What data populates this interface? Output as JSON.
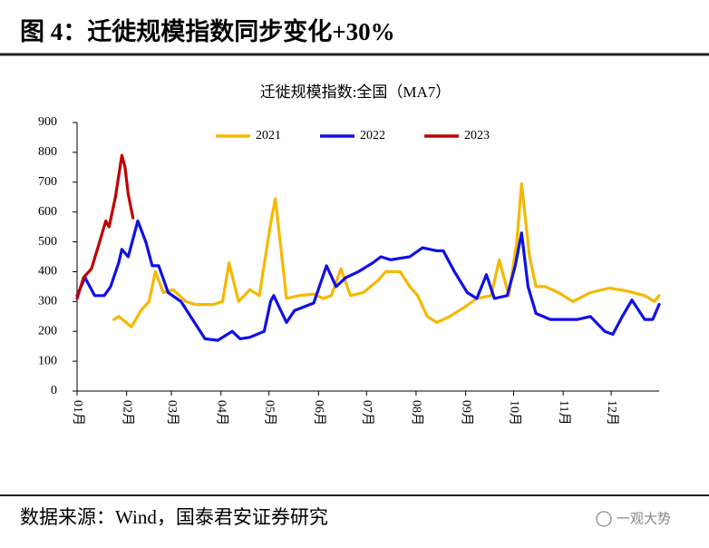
{
  "header": {
    "title": "图 4：迁徙规模指数同步变化+30%"
  },
  "chart_data": {
    "type": "line",
    "title": "迁徙规模指数:全国（MA7）",
    "xlim": [
      1,
      365
    ],
    "xticks": [
      {
        "value": 1,
        "label": "01月"
      },
      {
        "value": 32,
        "label": "02月"
      },
      {
        "value": 60,
        "label": "03月"
      },
      {
        "value": 91,
        "label": "04月"
      },
      {
        "value": 121,
        "label": "05月"
      },
      {
        "value": 152,
        "label": "06月"
      },
      {
        "value": 182,
        "label": "07月"
      },
      {
        "value": 213,
        "label": "08月"
      },
      {
        "value": 244,
        "label": "09月"
      },
      {
        "value": 274,
        "label": "10月"
      },
      {
        "value": 305,
        "label": "11月"
      },
      {
        "value": 335,
        "label": "12月"
      }
    ],
    "ylim": [
      0,
      900
    ],
    "yticks": [
      0,
      100,
      200,
      300,
      400,
      500,
      600,
      700,
      800,
      900
    ],
    "legend": "top",
    "series": [
      {
        "name": "2021",
        "color": "#f5b800",
        "x": [
          24,
          27,
          35,
          41,
          46,
          50,
          55,
          61,
          69,
          75,
          86,
          92,
          96,
          102,
          109,
          115,
          122,
          125,
          132,
          140,
          149,
          155,
          160,
          166,
          172,
          180,
          189,
          194,
          203,
          209,
          214,
          220,
          226,
          234,
          243,
          251,
          260,
          265,
          271,
          276,
          279,
          284,
          288,
          294,
          302,
          311,
          322,
          334,
          345,
          356,
          362,
          365
        ],
        "values": [
          240,
          250,
          215,
          270,
          300,
          400,
          330,
          340,
          300,
          290,
          290,
          300,
          430,
          300,
          340,
          320,
          560,
          645,
          310,
          320,
          325,
          310,
          320,
          410,
          320,
          330,
          370,
          400,
          400,
          350,
          320,
          250,
          230,
          250,
          280,
          310,
          320,
          440,
          320,
          500,
          695,
          450,
          350,
          350,
          330,
          300,
          330,
          345,
          335,
          320,
          300,
          320
        ]
      },
      {
        "name": "2022",
        "color": "#1010e8",
        "x": [
          1,
          6,
          12,
          18,
          22,
          27,
          29,
          33,
          39,
          44,
          48,
          52,
          58,
          66,
          72,
          81,
          89,
          98,
          103,
          109,
          118,
          122,
          124,
          132,
          137,
          149,
          157,
          163,
          169,
          177,
          186,
          191,
          197,
          209,
          217,
          226,
          230,
          237,
          245,
          251,
          257,
          262,
          270,
          275,
          279,
          283,
          288,
          297,
          305,
          314,
          322,
          331,
          336,
          342,
          348,
          356,
          361,
          365
        ],
        "values": [
          320,
          380,
          320,
          320,
          350,
          430,
          475,
          450,
          570,
          500,
          420,
          420,
          330,
          300,
          250,
          175,
          170,
          200,
          175,
          180,
          200,
          300,
          320,
          230,
          270,
          295,
          420,
          350,
          380,
          400,
          430,
          450,
          440,
          450,
          480,
          470,
          470,
          400,
          330,
          310,
          390,
          310,
          320,
          420,
          530,
          350,
          260,
          240,
          240,
          240,
          250,
          200,
          190,
          250,
          305,
          240,
          240,
          290
        ]
      },
      {
        "name": "2023",
        "color": "#c00000",
        "x": [
          1,
          5,
          10,
          14,
          19,
          21,
          25,
          29,
          31,
          33,
          36
        ],
        "values": [
          310,
          380,
          410,
          480,
          570,
          550,
          650,
          790,
          750,
          660,
          580
        ]
      }
    ]
  },
  "footer": {
    "source": "数据来源：Wind，国泰君安证券研究",
    "watermark": "一观大势"
  }
}
